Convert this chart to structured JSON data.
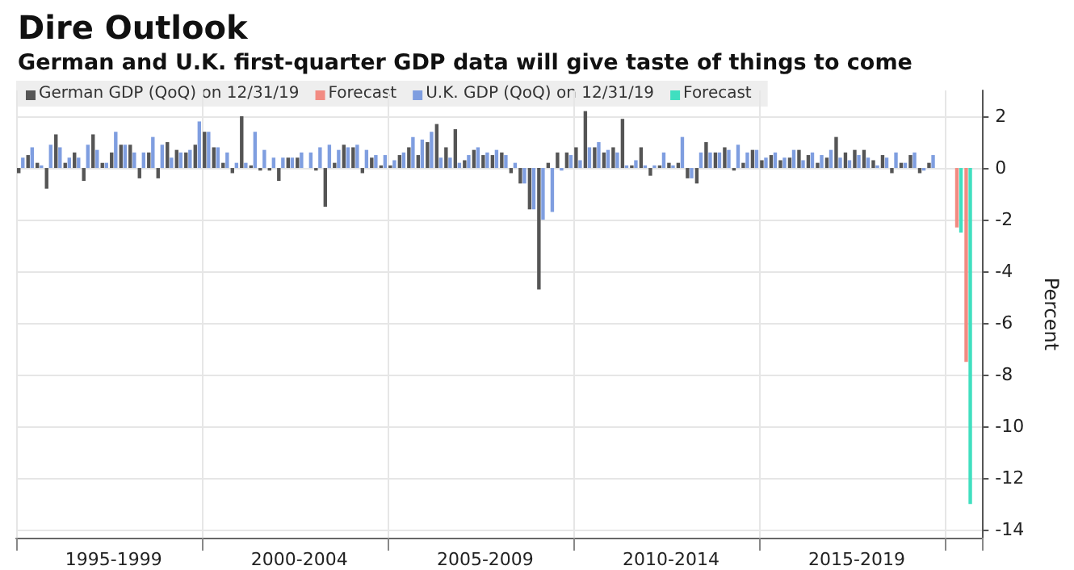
{
  "chart_data": {
    "type": "bar",
    "title": "Dire Outlook",
    "subtitle": "German and U.K. first-quarter GDP data will give taste of things to come",
    "ylabel": "Percent",
    "categories": [
      null,
      null,
      null,
      null,
      null,
      null,
      null,
      null,
      null,
      null,
      "1995-1999",
      null,
      null,
      null,
      null,
      null,
      null,
      null,
      null,
      null,
      null,
      null,
      null,
      null,
      null,
      null,
      null,
      null,
      null,
      null,
      "2000-2004",
      null,
      null,
      null,
      null,
      null,
      null,
      null,
      null,
      null,
      null,
      null,
      null,
      null,
      null,
      null,
      null,
      null,
      null,
      null,
      "2005-2009",
      null,
      null,
      null,
      null,
      null,
      null,
      null,
      null,
      null,
      null,
      null,
      null,
      null,
      null,
      null,
      null,
      null,
      null,
      null,
      "2010-2014",
      null,
      null,
      null,
      null,
      null,
      null,
      null,
      null,
      null,
      null,
      null,
      null,
      null,
      null,
      null,
      null,
      null,
      null,
      null,
      "2015-2019",
      null,
      null,
      null,
      null,
      null,
      null,
      null,
      null,
      null,
      null,
      null,
      null,
      null
    ],
    "series": [
      {
        "name": "German GDP (QoQ) on 12/31/19",
        "color": "#555555",
        "values": [
          -0.2,
          0.5,
          0.2,
          -0.8,
          1.3,
          0.2,
          0.6,
          -0.5,
          1.3,
          0.2,
          0.6,
          0.9,
          0.9,
          -0.4,
          0.6,
          -0.4,
          1.0,
          0.7,
          0.6,
          0.9,
          1.4,
          0.8,
          0.2,
          -0.2,
          2.0,
          0.1,
          -0.1,
          -0.1,
          -0.5,
          0.4,
          0.4,
          0.0,
          -0.1,
          -1.5,
          0.2,
          0.9,
          0.8,
          -0.2,
          0.4,
          0.1,
          0.1,
          0.5,
          0.8,
          0.5,
          1.0,
          1.7,
          0.8,
          1.5,
          0.3,
          0.7,
          0.5,
          0.5,
          0.6,
          -0.2,
          -0.6,
          -1.6,
          -4.7,
          0.2,
          0.6,
          0.6,
          0.8,
          2.2,
          0.8,
          0.6,
          0.8,
          1.9,
          0.1,
          0.8,
          -0.3,
          0.1,
          0.2,
          0.2,
          -0.4,
          -0.6,
          1.0,
          0.6,
          0.8,
          -0.1,
          0.2,
          0.7,
          0.3,
          0.5,
          0.3,
          0.4,
          0.7,
          0.5,
          0.2,
          0.4,
          1.2,
          0.6,
          0.7,
          0.7,
          0.3,
          0.5,
          -0.2,
          0.2,
          0.5,
          -0.2,
          0.2,
          0.0,
          null,
          null,
          null,
          null
        ]
      },
      {
        "name": "Forecast",
        "color": "#f28b82",
        "values": [
          null,
          null,
          null,
          null,
          null,
          null,
          null,
          null,
          null,
          null,
          null,
          null,
          null,
          null,
          null,
          null,
          null,
          null,
          null,
          null,
          null,
          null,
          null,
          null,
          null,
          null,
          null,
          null,
          null,
          null,
          null,
          null,
          null,
          null,
          null,
          null,
          null,
          null,
          null,
          null,
          null,
          null,
          null,
          null,
          null,
          null,
          null,
          null,
          null,
          null,
          null,
          null,
          null,
          null,
          null,
          null,
          null,
          null,
          null,
          null,
          null,
          null,
          null,
          null,
          null,
          null,
          null,
          null,
          null,
          null,
          null,
          null,
          null,
          null,
          null,
          null,
          null,
          null,
          null,
          null,
          null,
          null,
          null,
          null,
          null,
          null,
          null,
          null,
          null,
          null,
          null,
          null,
          null,
          null,
          null,
          null,
          null,
          null,
          null,
          null,
          null,
          -2.3,
          -7.5,
          null
        ]
      },
      {
        "name": "U.K. GDP (QoQ) on 12/31/19",
        "color": "#7f9ee0",
        "values": [
          0.4,
          0.8,
          0.1,
          0.9,
          0.8,
          0.4,
          0.4,
          0.9,
          0.7,
          0.2,
          1.4,
          0.9,
          0.6,
          0.6,
          1.2,
          0.9,
          0.4,
          0.6,
          0.7,
          1.8,
          1.4,
          0.8,
          0.6,
          0.2,
          0.2,
          1.4,
          0.7,
          0.4,
          0.4,
          0.4,
          0.6,
          0.6,
          0.8,
          0.9,
          0.7,
          0.8,
          0.9,
          0.7,
          0.5,
          0.5,
          0.3,
          0.6,
          1.2,
          1.1,
          1.4,
          0.4,
          0.4,
          0.2,
          0.5,
          0.8,
          0.6,
          0.7,
          0.5,
          0.2,
          -0.6,
          -1.6,
          -2.0,
          -1.7,
          -0.1,
          0.5,
          0.3,
          0.8,
          1.0,
          0.7,
          0.6,
          0.1,
          0.3,
          0.1,
          0.1,
          0.6,
          0.1,
          1.2,
          -0.4,
          0.6,
          0.6,
          0.6,
          0.7,
          0.9,
          0.6,
          0.7,
          0.4,
          0.6,
          0.4,
          0.7,
          0.3,
          0.6,
          0.5,
          0.7,
          0.4,
          0.3,
          0.5,
          0.4,
          0.1,
          0.4,
          0.6,
          0.2,
          0.6,
          -0.1,
          0.5,
          0.0,
          null,
          null,
          null,
          null
        ]
      },
      {
        "name": "Forecast",
        "color": "#40dfc0",
        "values": [
          null,
          null,
          null,
          null,
          null,
          null,
          null,
          null,
          null,
          null,
          null,
          null,
          null,
          null,
          null,
          null,
          null,
          null,
          null,
          null,
          null,
          null,
          null,
          null,
          null,
          null,
          null,
          null,
          null,
          null,
          null,
          null,
          null,
          null,
          null,
          null,
          null,
          null,
          null,
          null,
          null,
          null,
          null,
          null,
          null,
          null,
          null,
          null,
          null,
          null,
          null,
          null,
          null,
          null,
          null,
          null,
          null,
          null,
          null,
          null,
          null,
          null,
          null,
          null,
          null,
          null,
          null,
          null,
          null,
          null,
          null,
          null,
          null,
          null,
          null,
          null,
          null,
          null,
          null,
          null,
          null,
          null,
          null,
          null,
          null,
          null,
          null,
          null,
          null,
          null,
          null,
          null,
          null,
          null,
          null,
          null,
          null,
          null,
          null,
          null,
          null,
          -2.5,
          -13,
          null
        ]
      }
    ],
    "ylim": [
      -14.3,
      3
    ],
    "yticks": [
      -14,
      -12,
      -10,
      -8,
      -6,
      -4,
      -2,
      0,
      2
    ],
    "grid": true,
    "legend": "top left"
  }
}
